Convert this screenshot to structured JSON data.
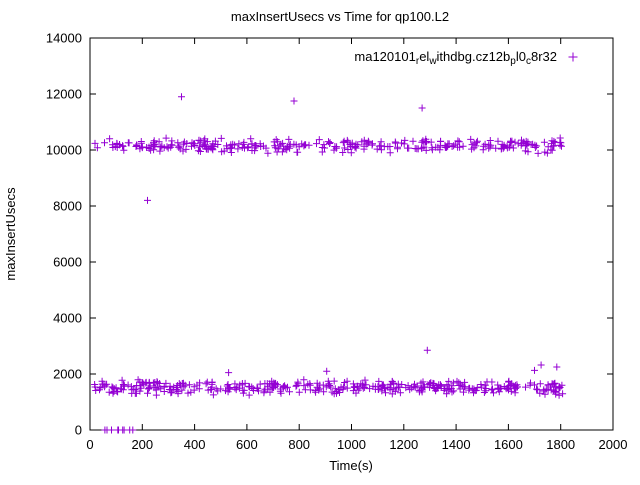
{
  "chart_data": {
    "type": "scatter",
    "title": "maxInsertUsecs vs Time for qp100.L2",
    "xlabel": "Time(s)",
    "ylabel": "maxInsertUsecs",
    "xlim": [
      0,
      2000
    ],
    "ylim": [
      0,
      14000
    ],
    "xticks": [
      0,
      200,
      400,
      600,
      800,
      1000,
      1200,
      1400,
      1600,
      1800,
      2000
    ],
    "yticks": [
      0,
      2000,
      4000,
      6000,
      8000,
      10000,
      12000,
      14000
    ],
    "grid": false,
    "marker": "plus",
    "marker_color": "#9400d3",
    "legend": {
      "position": "top-right-inside",
      "label_raw": "ma120101_rel_withdbg.cz12b_pl0_c8r32",
      "label_parts": [
        {
          "t": "ma120101",
          "sub": false
        },
        {
          "t": "r",
          "sub": true
        },
        {
          "t": "el",
          "sub": false
        },
        {
          "t": "w",
          "sub": true
        },
        {
          "t": "ithdbg.cz12b",
          "sub": false
        },
        {
          "t": "p",
          "sub": true
        },
        {
          "t": "l0",
          "sub": false
        },
        {
          "t": "c",
          "sub": true
        },
        {
          "t": "8r32",
          "sub": false
        }
      ]
    },
    "series": [
      {
        "name": "upper-band",
        "x_range": [
          15,
          1810
        ],
        "y_mean": 10150,
        "y_spread": 300,
        "count": 320
      },
      {
        "name": "lower-band",
        "x_range": [
          5,
          1810
        ],
        "y_mean": 1520,
        "y_spread": 290,
        "count": 400
      },
      {
        "name": "zero-run",
        "x_range": [
          55,
          165
        ],
        "y_mean": 0,
        "y_spread": 0,
        "count": 9
      }
    ],
    "outliers": [
      [
        220,
        8200
      ],
      [
        350,
        11900
      ],
      [
        780,
        11750
      ],
      [
        1270,
        11500
      ],
      [
        1290,
        2850
      ],
      [
        905,
        2100
      ],
      [
        530,
        2050
      ],
      [
        1700,
        2130
      ],
      [
        1725,
        2320
      ],
      [
        1785,
        2250
      ]
    ]
  },
  "layout_text": {
    "title": "maxInsertUsecs vs Time for qp100.L2",
    "xlabel": "Time(s)",
    "ylabel": "maxInsertUsecs"
  }
}
